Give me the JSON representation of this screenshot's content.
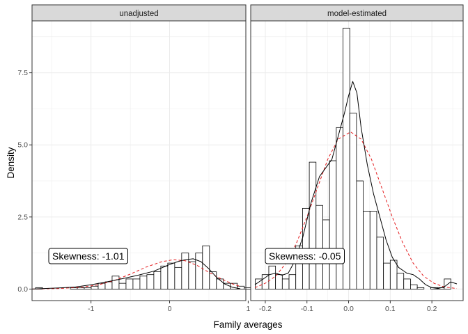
{
  "chart_data": {
    "type": "histogram",
    "xlabel": "Family averages",
    "ylabel": "Density",
    "grid": true,
    "y_ticks": [
      0.0,
      2.5,
      5.0,
      7.5
    ],
    "y_tick_labels": [
      "0.0",
      "2.5",
      "5.0",
      "7.5"
    ],
    "ylim": [
      -0.4,
      9.3
    ],
    "colors": {
      "normal_curve": "#e41a1c",
      "kde_curve": "#000000",
      "strip_fill": "#d9d9d9"
    },
    "panels": [
      {
        "strip_label": "unadjusted",
        "xlim": [
          -1.75,
          0.97
        ],
        "x_ticks": [
          -1,
          0,
          1
        ],
        "x_tick_labels": [
          "-1",
          "0",
          "1"
        ],
        "bin_width": 0.0885,
        "bin_start": -1.705,
        "bars": [
          0.05,
          0.0,
          0.0,
          0.0,
          0.0,
          0.05,
          0.05,
          0.05,
          0.1,
          0.2,
          0.25,
          0.45,
          0.2,
          0.35,
          0.35,
          0.45,
          0.5,
          0.6,
          0.8,
          0.9,
          0.75,
          1.25,
          0.95,
          1.25,
          1.5,
          0.6,
          0.35,
          0.2,
          0.2,
          0.1,
          0.05
        ],
        "kde": [
          [
            -1.75,
            0.0
          ],
          [
            -1.6,
            0.02
          ],
          [
            -1.4,
            0.04
          ],
          [
            -1.2,
            0.07
          ],
          [
            -1.0,
            0.15
          ],
          [
            -0.8,
            0.25
          ],
          [
            -0.6,
            0.36
          ],
          [
            -0.4,
            0.48
          ],
          [
            -0.2,
            0.62
          ],
          [
            0.0,
            0.85
          ],
          [
            0.1,
            0.95
          ],
          [
            0.2,
            1.02
          ],
          [
            0.3,
            1.05
          ],
          [
            0.4,
            0.95
          ],
          [
            0.5,
            0.7
          ],
          [
            0.6,
            0.4
          ],
          [
            0.7,
            0.18
          ],
          [
            0.8,
            0.06
          ],
          [
            0.9,
            0.01
          ]
        ],
        "normal": [
          [
            -1.75,
            0.0
          ],
          [
            -1.4,
            0.02
          ],
          [
            -1.1,
            0.07
          ],
          [
            -0.9,
            0.15
          ],
          [
            -0.7,
            0.3
          ],
          [
            -0.5,
            0.52
          ],
          [
            -0.3,
            0.76
          ],
          [
            -0.1,
            0.95
          ],
          [
            0.05,
            1.02
          ],
          [
            0.2,
            0.98
          ],
          [
            0.35,
            0.82
          ],
          [
            0.5,
            0.58
          ],
          [
            0.65,
            0.36
          ],
          [
            0.8,
            0.18
          ],
          [
            0.9,
            0.09
          ]
        ],
        "annotation": "Skewness: -1.01"
      },
      {
        "strip_label": "model-estimated",
        "xlim": [
          -0.235,
          0.275
        ],
        "x_ticks": [
          -0.2,
          -0.1,
          0.0,
          0.1,
          0.2
        ],
        "x_tick_labels": [
          "-0.2",
          "-0.1",
          "0.0",
          "0.1",
          "0.2"
        ],
        "bin_width": 0.0162,
        "bin_start": -0.224,
        "bars": [
          0.35,
          0.5,
          0.8,
          0.5,
          0.35,
          0.5,
          1.5,
          2.8,
          4.4,
          2.9,
          2.4,
          4.45,
          5.6,
          9.05,
          6.1,
          3.75,
          2.7,
          2.7,
          1.8,
          0.9,
          1.0,
          0.55,
          0.35,
          0.15,
          0.05,
          0.0,
          0.05,
          0.05,
          0.35
        ],
        "kde": [
          [
            -0.225,
            0.15
          ],
          [
            -0.21,
            0.3
          ],
          [
            -0.19,
            0.5
          ],
          [
            -0.175,
            0.55
          ],
          [
            -0.16,
            0.48
          ],
          [
            -0.145,
            0.55
          ],
          [
            -0.13,
            0.95
          ],
          [
            -0.11,
            1.8
          ],
          [
            -0.09,
            3.0
          ],
          [
            -0.07,
            3.9
          ],
          [
            -0.055,
            4.2
          ],
          [
            -0.04,
            4.5
          ],
          [
            -0.025,
            5.3
          ],
          [
            -0.01,
            6.1
          ],
          [
            0.0,
            6.7
          ],
          [
            0.01,
            7.2
          ],
          [
            0.02,
            6.8
          ],
          [
            0.03,
            5.6
          ],
          [
            0.045,
            4.3
          ],
          [
            0.06,
            3.3
          ],
          [
            0.075,
            2.5
          ],
          [
            0.09,
            1.7
          ],
          [
            0.105,
            1.1
          ],
          [
            0.12,
            0.75
          ],
          [
            0.14,
            0.55
          ],
          [
            0.155,
            0.5
          ],
          [
            0.17,
            0.35
          ],
          [
            0.185,
            0.15
          ],
          [
            0.2,
            0.05
          ],
          [
            0.215,
            0.02
          ],
          [
            0.23,
            0.08
          ],
          [
            0.245,
            0.25
          ],
          [
            0.26,
            0.18
          ]
        ],
        "normal": [
          [
            -0.225,
            0.05
          ],
          [
            -0.2,
            0.2
          ],
          [
            -0.175,
            0.45
          ],
          [
            -0.15,
            0.9
          ],
          [
            -0.125,
            1.6
          ],
          [
            -0.1,
            2.5
          ],
          [
            -0.075,
            3.5
          ],
          [
            -0.05,
            4.5
          ],
          [
            -0.025,
            5.2
          ],
          [
            0.005,
            5.45
          ],
          [
            0.03,
            5.2
          ],
          [
            0.055,
            4.5
          ],
          [
            0.08,
            3.5
          ],
          [
            0.105,
            2.5
          ],
          [
            0.13,
            1.6
          ],
          [
            0.155,
            0.9
          ],
          [
            0.18,
            0.45
          ],
          [
            0.205,
            0.2
          ],
          [
            0.23,
            0.07
          ],
          [
            0.26,
            0.02
          ]
        ],
        "annotation": "Skewness: -0.05"
      }
    ]
  }
}
